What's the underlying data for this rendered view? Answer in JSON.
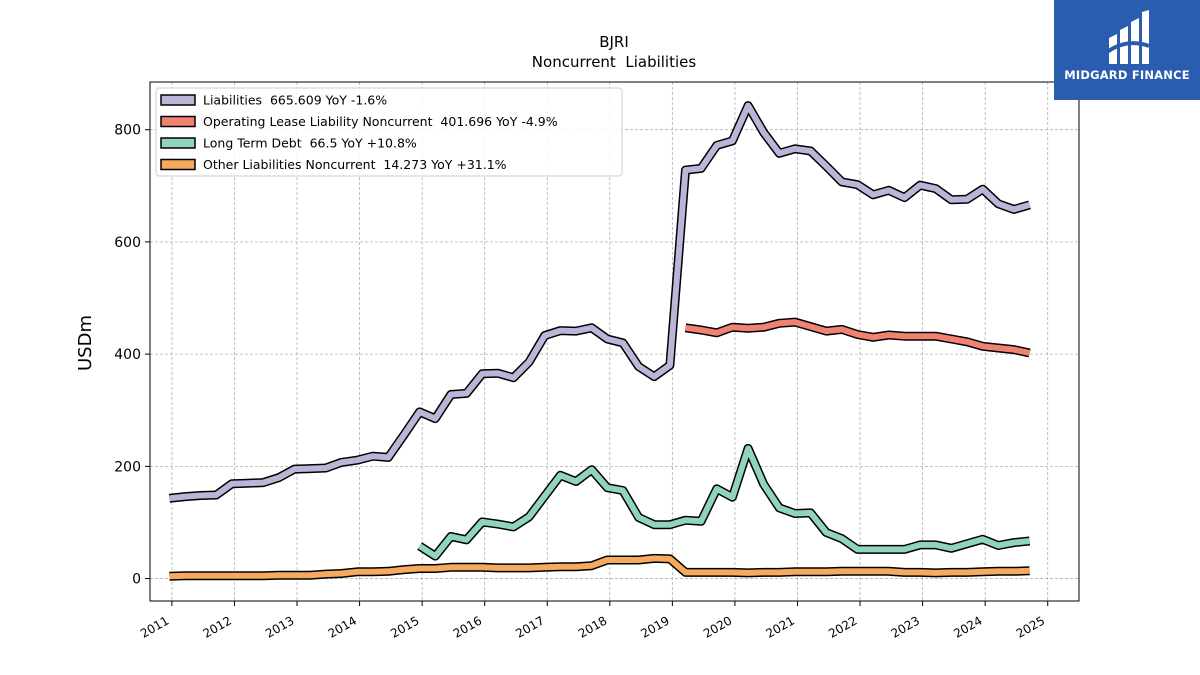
{
  "brand": {
    "name": "MIDGARD FINANCE",
    "bg_color": "#2a5db0"
  },
  "chart_data": {
    "type": "line",
    "title": "BJRI",
    "subtitle": "Noncurrent  Liabilities",
    "xlabel": "",
    "ylabel": "USDm",
    "xlim": [
      2010.65,
      2025.5
    ],
    "ylim": [
      -40,
      885
    ],
    "x_ticks": [
      "2011",
      "2012",
      "2013",
      "2014",
      "2015",
      "2016",
      "2017",
      "2018",
      "2019",
      "2020",
      "2021",
      "2022",
      "2023",
      "2024",
      "2025"
    ],
    "y_ticks": [
      "0",
      "200",
      "400",
      "600",
      "800"
    ],
    "grid": true,
    "legend_position": "top-left",
    "series": [
      {
        "name": "Liabilities",
        "legend_label": "Liabilities  665.609 YoY -1.6%",
        "color": "#bcb5d8",
        "x": [
          2010.96,
          2011.21,
          2011.46,
          2011.71,
          2011.96,
          2012.21,
          2012.46,
          2012.71,
          2012.96,
          2013.21,
          2013.46,
          2013.71,
          2013.96,
          2014.21,
          2014.46,
          2014.71,
          2014.96,
          2015.21,
          2015.46,
          2015.71,
          2015.96,
          2016.21,
          2016.46,
          2016.71,
          2016.96,
          2017.21,
          2017.46,
          2017.71,
          2017.96,
          2018.21,
          2018.46,
          2018.71,
          2018.96,
          2019.21,
          2019.46,
          2019.71,
          2019.96,
          2020.21,
          2020.46,
          2020.71,
          2020.96,
          2021.21,
          2021.46,
          2021.71,
          2021.96,
          2022.21,
          2022.46,
          2022.71,
          2022.96,
          2023.21,
          2023.46,
          2023.71,
          2023.96,
          2024.21,
          2024.46,
          2024.71
        ],
        "values": [
          143,
          146,
          148,
          149,
          169,
          170,
          171,
          180,
          195,
          196,
          197,
          207,
          211,
          218,
          216,
          256,
          297,
          285,
          328,
          330,
          365,
          366,
          358,
          386,
          433,
          442,
          441,
          447,
          427,
          420,
          378,
          360,
          380,
          728,
          731,
          772,
          780,
          843,
          795,
          758,
          766,
          762,
          735,
          707,
          702,
          684,
          692,
          679,
          701,
          695,
          675,
          676,
          694,
          668,
          658,
          666
        ]
      },
      {
        "name": "Operating Lease Liability Noncurrent",
        "legend_label": "Operating Lease Liability Noncurrent  401.696 YoY -4.9%",
        "color": "#f08272",
        "x": [
          2019.21,
          2019.46,
          2019.71,
          2019.96,
          2020.21,
          2020.46,
          2020.71,
          2020.96,
          2021.21,
          2021.46,
          2021.71,
          2021.96,
          2022.21,
          2022.46,
          2022.71,
          2022.96,
          2023.21,
          2023.46,
          2023.71,
          2023.96,
          2024.21,
          2024.46,
          2024.71
        ],
        "values": [
          447,
          443,
          438,
          448,
          446,
          448,
          455,
          457,
          449,
          441,
          444,
          435,
          430,
          434,
          432,
          432,
          432,
          427,
          422,
          414,
          411,
          408,
          402
        ]
      },
      {
        "name": "Long Term Debt",
        "legend_label": "Long Term Debt  66.5 YoY +10.8%",
        "color": "#8fd3c0",
        "x": [
          2014.96,
          2015.21,
          2015.46,
          2015.71,
          2015.96,
          2016.21,
          2016.46,
          2016.71,
          2016.96,
          2017.21,
          2017.46,
          2017.71,
          2017.96,
          2018.21,
          2018.46,
          2018.71,
          2018.96,
          2019.21,
          2019.46,
          2019.71,
          2019.96,
          2020.21,
          2020.46,
          2020.71,
          2020.96,
          2021.21,
          2021.46,
          2021.71,
          2021.96,
          2022.21,
          2022.46,
          2022.71,
          2022.96,
          2023.21,
          2023.46,
          2023.71,
          2023.96,
          2024.21,
          2024.46,
          2024.71
        ],
        "values": [
          58,
          40,
          75,
          69,
          101,
          97,
          92,
          110,
          147,
          184,
          173,
          194,
          162,
          157,
          109,
          96,
          96,
          104,
          102,
          160,
          145,
          232,
          168,
          126,
          116,
          117,
          82,
          71,
          52,
          52,
          52,
          52,
          60,
          60,
          54,
          62,
          70,
          59,
          64,
          67
        ]
      },
      {
        "name": "Other Liabilities Noncurrent",
        "legend_label": "Other Liabilities Noncurrent  14.273 YoY +31.1%",
        "color": "#f5aa5e",
        "x": [
          2010.96,
          2011.21,
          2011.46,
          2011.71,
          2011.96,
          2012.21,
          2012.46,
          2012.71,
          2012.96,
          2013.21,
          2013.46,
          2013.71,
          2013.96,
          2014.21,
          2014.46,
          2014.71,
          2014.96,
          2015.21,
          2015.46,
          2015.71,
          2015.96,
          2016.21,
          2016.46,
          2016.71,
          2016.96,
          2017.21,
          2017.46,
          2017.71,
          2017.96,
          2018.21,
          2018.46,
          2018.71,
          2018.96,
          2019.21,
          2019.46,
          2019.71,
          2019.96,
          2020.21,
          2020.46,
          2020.71,
          2020.96,
          2021.21,
          2021.46,
          2021.71,
          2021.96,
          2022.21,
          2022.46,
          2022.71,
          2022.96,
          2023.21,
          2023.46,
          2023.71,
          2023.96,
          2024.21,
          2024.46,
          2024.71
        ],
        "values": [
          4,
          5,
          5,
          5,
          5,
          5,
          5,
          6,
          6,
          6,
          8,
          9,
          12,
          12,
          13,
          16,
          18,
          18,
          20,
          20,
          20,
          19,
          19,
          19,
          20,
          21,
          21,
          23,
          33,
          33,
          33,
          36,
          35,
          11,
          11,
          11,
          11,
          10,
          11,
          11,
          12,
          12,
          12,
          13,
          13,
          13,
          13,
          11,
          11,
          10,
          11,
          11,
          12,
          13,
          13,
          14
        ]
      }
    ]
  }
}
